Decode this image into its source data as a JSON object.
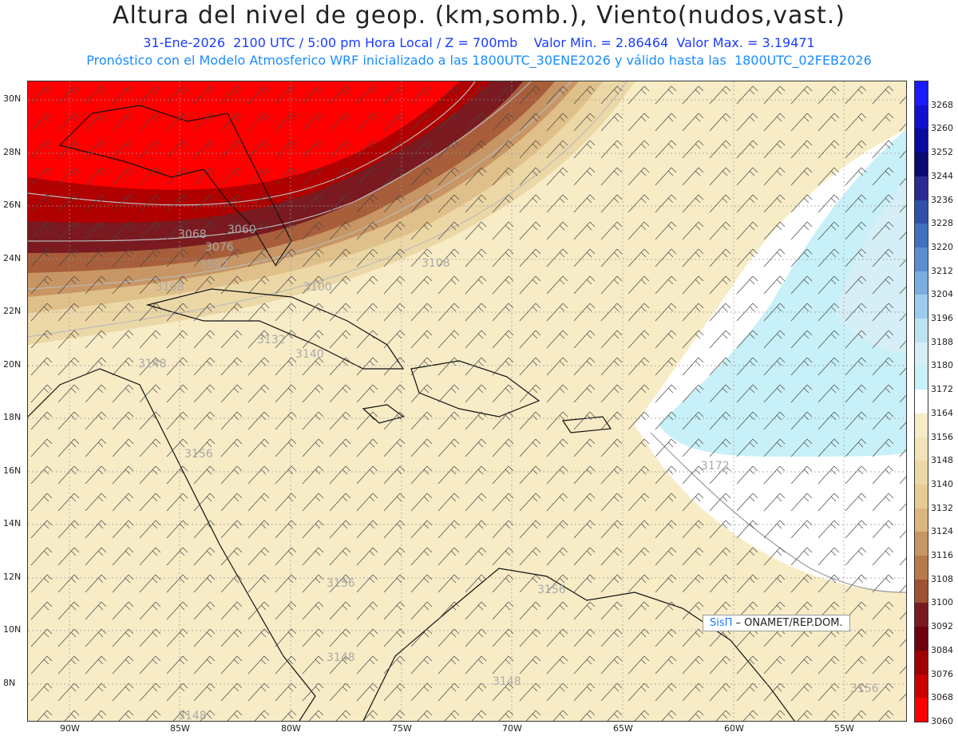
{
  "header": {
    "title": "Altura del nivel de geop. (km,somb.), Viento(nudos,vast.)",
    "subtitle_line1": "31-Ene-2026  2100 UTC / 5:00 pm Hora Local / Z = 700mb    Valor Min. = 2.86464  Valor Max. = 3.19471",
    "subtitle_line2": "Pronóstico con el Modelo Atmosferico WRF inicializado a las 1800UTC_30ENE2026 y válido hasta las  1800UTC_02FEB2026"
  },
  "axes": {
    "lat_labels": [
      "30N",
      "28N",
      "26N",
      "24N",
      "22N",
      "20N",
      "18N",
      "16N",
      "14N",
      "12N",
      "10N",
      "8N"
    ],
    "lon_labels": [
      "90W",
      "85W",
      "80W",
      "75W",
      "70W",
      "65W",
      "60W",
      "55W"
    ]
  },
  "contour_labels": [
    "3068",
    "3060",
    "3076",
    "3092",
    "3108",
    "3100",
    "3108",
    "3132",
    "3140",
    "3148",
    "3156",
    "3156",
    "3156",
    "3148",
    "3148",
    "3148",
    "3156",
    "3172"
  ],
  "colorbar": {
    "levels": [
      "3268",
      "3260",
      "3252",
      "3244",
      "3236",
      "3228",
      "3220",
      "3212",
      "3204",
      "3196",
      "3188",
      "3180",
      "3172",
      "3164",
      "3156",
      "3148",
      "3140",
      "3132",
      "3124",
      "3116",
      "3108",
      "3100",
      "3092",
      "3084",
      "3076",
      "3068",
      "3060"
    ],
    "colors": [
      "#1a1aff",
      "#1010d0",
      "#0a0aa0",
      "#0a0a70",
      "#2a2a90",
      "#3050a8",
      "#4070c0",
      "#5a8ed0",
      "#7aaee0",
      "#9ccced",
      "#bde3f0",
      "#d6eef6",
      "#c8f0f8",
      "#ffffff",
      "#f5ecc8",
      "#f2e3b8",
      "#ecd8a6",
      "#e6cc92",
      "#dbb67e",
      "#c89664",
      "#b87a4a",
      "#9e5232",
      "#7a1a20",
      "#6e0010",
      "#a00000",
      "#cc0000",
      "#ff0000"
    ]
  },
  "credit": {
    "brand": "SisΠ",
    "text": " – ONAMET/REP.DOM."
  }
}
